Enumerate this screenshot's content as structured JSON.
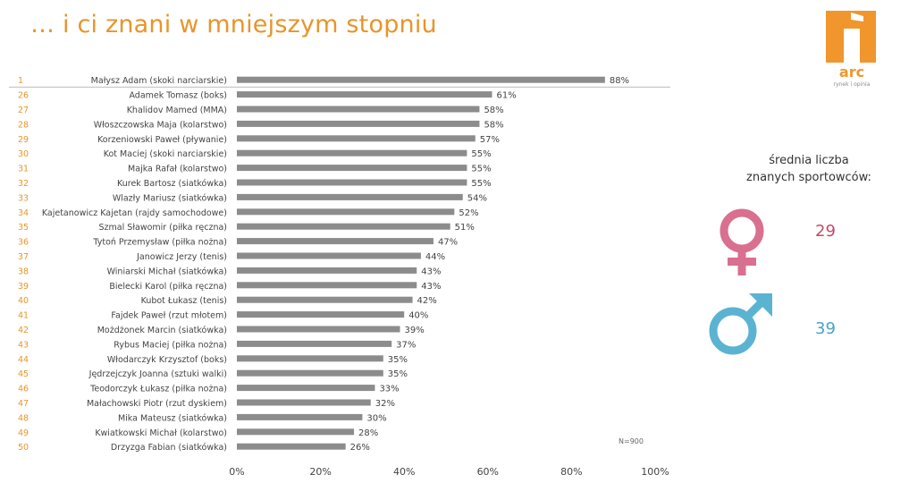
{
  "title": "… i ci znani w mniejszym stopniu",
  "logo": {
    "brand": "arc",
    "tagline": "rynek i opinia"
  },
  "note": "N=900",
  "side_panel": {
    "avg_label_line1": "średnia liczba",
    "avg_label_line2": "znanych sportowców:",
    "female_value": "29",
    "male_value": "39",
    "female_color": "#d9708f",
    "male_color": "#5bb3d2"
  },
  "colors": {
    "accent": "#e8952a",
    "bar": "#8c8c8c",
    "text": "#444444"
  },
  "chart_data": {
    "type": "bar",
    "orientation": "horizontal",
    "title": "",
    "xlabel": "",
    "ylabel": "",
    "xlim": [
      0,
      100
    ],
    "x_ticks": [
      "0%",
      "20%",
      "40%",
      "60%",
      "80%",
      "100%"
    ],
    "ranks": [
      "1",
      "26",
      "27",
      "28",
      "29",
      "30",
      "31",
      "32",
      "33",
      "34",
      "35",
      "36",
      "37",
      "38",
      "39",
      "40",
      "41",
      "42",
      "43",
      "44",
      "45",
      "46",
      "47",
      "48",
      "49",
      "50"
    ],
    "categories": [
      "Małysz Adam (skoki narciarskie)",
      "Adamek Tomasz (boks)",
      "Khalidov Mamed (MMA)",
      "Włoszczowska Maja (kolarstwo)",
      "Korzeniowski Paweł (pływanie)",
      "Kot Maciej (skoki narciarskie)",
      "Majka Rafał (kolarstwo)",
      "Kurek Bartosz (siatkówka)",
      "Wlazły Mariusz (siatkówka)",
      "Kajetanowicz Kajetan (rajdy samochodowe)",
      "Szmal Sławomir (piłka ręczna)",
      "Tytoń Przemysław (piłka nożna)",
      "Janowicz Jerzy (tenis)",
      "Winiarski Michał (siatkówka)",
      "Bielecki Karol (piłka ręczna)",
      "Kubot Łukasz (tenis)",
      "Fajdek Paweł (rzut młotem)",
      "Możdżonek Marcin (siatkówka)",
      "Rybus Maciej (piłka nożna)",
      "Włodarczyk Krzysztof (boks)",
      "Jędrzejczyk Joanna (sztuki walki)",
      "Teodorczyk Łukasz (piłka nożna)",
      "Małachowski Piotr (rzut dyskiem)",
      "Mika Mateusz (siatkówka)",
      "Kwiatkowski Michał (kolarstwo)",
      "Drzyzga Fabian (siatkówka)"
    ],
    "values": [
      88,
      61,
      58,
      58,
      57,
      55,
      55,
      55,
      54,
      52,
      51,
      47,
      44,
      43,
      43,
      42,
      40,
      39,
      37,
      35,
      35,
      33,
      32,
      30,
      28,
      26
    ],
    "value_labels": [
      "88%",
      "61%",
      "58%",
      "58%",
      "57%",
      "55%",
      "55%",
      "55%",
      "54%",
      "52%",
      "51%",
      "47%",
      "44%",
      "43%",
      "43%",
      "42%",
      "40%",
      "39%",
      "37%",
      "35%",
      "35%",
      "33%",
      "32%",
      "30%",
      "28%",
      "26%"
    ],
    "grid": false
  }
}
